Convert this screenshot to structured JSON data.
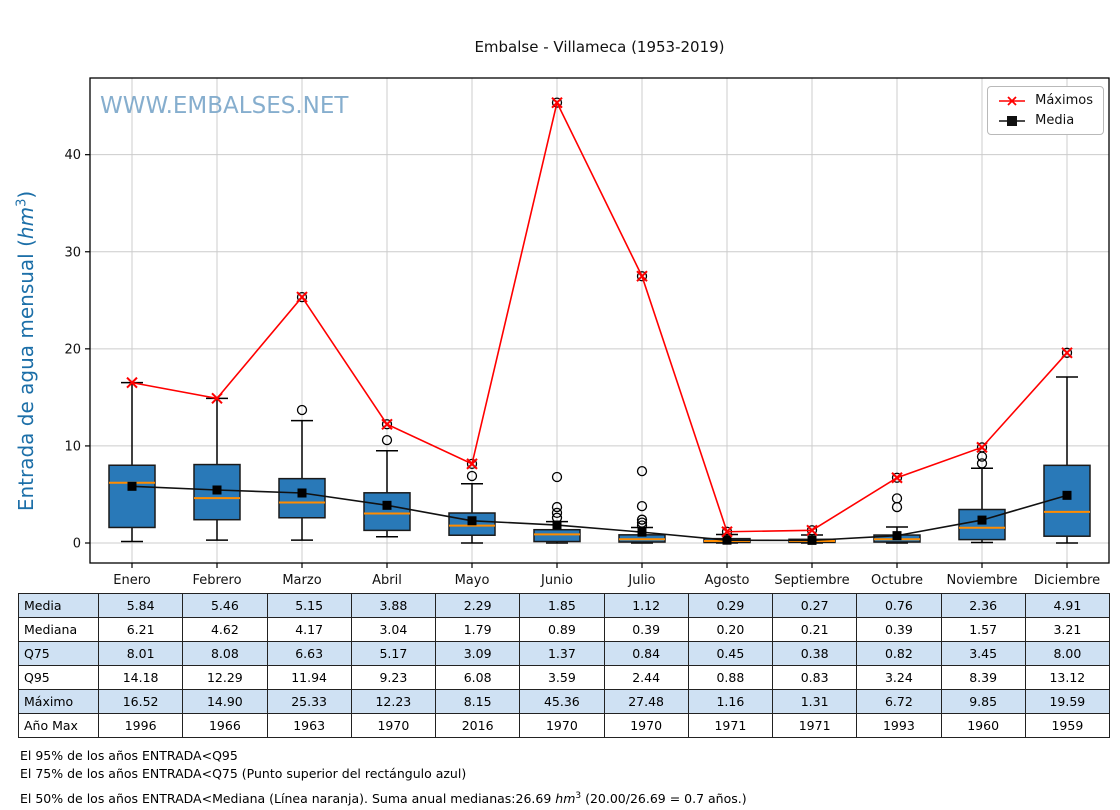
{
  "title": "Embalse - Villameca (1953-2019)",
  "watermark": "WWW.EMBALSES.NET",
  "y_axis": {
    "label_pre": "Entrada de agua mensual (",
    "label_unit": "hm",
    "label_sup": "3",
    "label_post": ")"
  },
  "legend": {
    "items": [
      {
        "label": "Máximos",
        "type": "max",
        "color": "#ff0000",
        "marker": "x"
      },
      {
        "label": "Media",
        "type": "mean",
        "color": "#000000",
        "marker": "square"
      }
    ]
  },
  "chart_data": {
    "type": "boxplot+line",
    "categories": [
      "Enero",
      "Febrero",
      "Marzo",
      "Abril",
      "Mayo",
      "Junio",
      "Julio",
      "Agosto",
      "Septiembre",
      "Octubre",
      "Noviembre",
      "Diciembre"
    ],
    "yticks": [
      0,
      10,
      20,
      30,
      40
    ],
    "ylim": [
      -2.1,
      47.9
    ],
    "grid": true,
    "series": [
      {
        "name": "Máximos",
        "marker": "x",
        "color": "#ff0000",
        "values": [
          16.52,
          14.9,
          25.33,
          12.23,
          8.15,
          45.36,
          27.48,
          1.16,
          1.31,
          6.72,
          9.85,
          19.59
        ]
      },
      {
        "name": "Media",
        "marker": "square",
        "color": "#000000",
        "values": [
          5.84,
          5.46,
          5.15,
          3.88,
          2.29,
          1.85,
          1.12,
          0.29,
          0.27,
          0.76,
          2.36,
          4.91
        ]
      }
    ],
    "boxes": [
      {
        "q1": 1.6,
        "median": 6.21,
        "q3": 8.01,
        "whisker_low": 0.15,
        "whisker_high": 16.52,
        "outliers": []
      },
      {
        "q1": 2.4,
        "median": 4.62,
        "q3": 8.08,
        "whisker_low": 0.3,
        "whisker_high": 14.9,
        "outliers": []
      },
      {
        "q1": 2.6,
        "median": 4.17,
        "q3": 6.63,
        "whisker_low": 0.3,
        "whisker_high": 12.6,
        "outliers": [
          13.7,
          25.33
        ]
      },
      {
        "q1": 1.3,
        "median": 3.04,
        "q3": 5.17,
        "whisker_low": 0.65,
        "whisker_high": 9.5,
        "outliers": [
          10.6,
          12.23
        ]
      },
      {
        "q1": 0.8,
        "median": 1.79,
        "q3": 3.09,
        "whisker_low": 0.0,
        "whisker_high": 6.1,
        "outliers": [
          6.9,
          8.15
        ]
      },
      {
        "q1": 0.15,
        "median": 0.89,
        "q3": 1.37,
        "whisker_low": 0.0,
        "whisker_high": 2.2,
        "outliers": [
          2.6,
          3.1,
          3.7,
          6.8,
          45.36
        ]
      },
      {
        "q1": 0.1,
        "median": 0.39,
        "q3": 0.84,
        "whisker_low": 0.0,
        "whisker_high": 1.6,
        "outliers": [
          1.8,
          2.1,
          2.4,
          3.8,
          7.4,
          27.48
        ]
      },
      {
        "q1": 0.05,
        "median": 0.2,
        "q3": 0.45,
        "whisker_low": 0.0,
        "whisker_high": 0.88,
        "outliers": [
          1.16
        ]
      },
      {
        "q1": 0.06,
        "median": 0.21,
        "q3": 0.38,
        "whisker_low": 0.0,
        "whisker_high": 0.83,
        "outliers": [
          1.31
        ]
      },
      {
        "q1": 0.1,
        "median": 0.39,
        "q3": 0.82,
        "whisker_low": 0.0,
        "whisker_high": 1.65,
        "outliers": [
          3.7,
          4.6,
          6.72
        ]
      },
      {
        "q1": 0.35,
        "median": 1.57,
        "q3": 3.45,
        "whisker_low": 0.05,
        "whisker_high": 7.7,
        "outliers": [
          8.2,
          8.9,
          9.85
        ]
      },
      {
        "q1": 0.7,
        "median": 3.21,
        "q3": 8.0,
        "whisker_low": 0.0,
        "whisker_high": 17.1,
        "outliers": [
          19.59
        ]
      }
    ],
    "colors": {
      "box_fill": "#2979b8",
      "box_edge": "#1a1a1a",
      "median_line": "#ff8c00",
      "max_line": "#ff0000",
      "mean_line": "#111111",
      "grid": "#cccccc",
      "watermark": "#7aa6c9",
      "ylabel": "#1c6fa8",
      "table_shade": "#cfe1f3"
    }
  },
  "table": {
    "rows": [
      {
        "label": "Media",
        "shaded": true,
        "values": [
          "5.84",
          "5.46",
          "5.15",
          "3.88",
          "2.29",
          "1.85",
          "1.12",
          "0.29",
          "0.27",
          "0.76",
          "2.36",
          "4.91"
        ]
      },
      {
        "label": "Mediana",
        "shaded": false,
        "values": [
          "6.21",
          "4.62",
          "4.17",
          "3.04",
          "1.79",
          "0.89",
          "0.39",
          "0.20",
          "0.21",
          "0.39",
          "1.57",
          "3.21"
        ]
      },
      {
        "label": "Q75",
        "shaded": true,
        "values": [
          "8.01",
          "8.08",
          "6.63",
          "5.17",
          "3.09",
          "1.37",
          "0.84",
          "0.45",
          "0.38",
          "0.82",
          "3.45",
          "8.00"
        ]
      },
      {
        "label": "Q95",
        "shaded": false,
        "values": [
          "14.18",
          "12.29",
          "11.94",
          "9.23",
          "6.08",
          "3.59",
          "2.44",
          "0.88",
          "0.83",
          "3.24",
          "8.39",
          "13.12"
        ]
      },
      {
        "label": "Máximo",
        "shaded": true,
        "values": [
          "16.52",
          "14.90",
          "25.33",
          "12.23",
          "8.15",
          "45.36",
          "27.48",
          "1.16",
          "1.31",
          "6.72",
          "9.85",
          "19.59"
        ]
      },
      {
        "label": "Año Max",
        "shaded": false,
        "values": [
          "1996",
          "1966",
          "1963",
          "1970",
          "2016",
          "1970",
          "1970",
          "1971",
          "1971",
          "1993",
          "1960",
          "1959"
        ]
      }
    ]
  },
  "footnotes": {
    "line1": "El 95% de los años ENTRADA<Q95",
    "line2": "El 75% de los años ENTRADA<Q75 (Punto superior del rectángulo azul)",
    "line3_pre": "El 50% de los años ENTRADA<Mediana (Línea naranja). Suma anual medianas:26.69 ",
    "line3_unit": "hm",
    "line3_sup": "3",
    "line3_post": " (20.00/26.69 = 0.7 años.)"
  }
}
